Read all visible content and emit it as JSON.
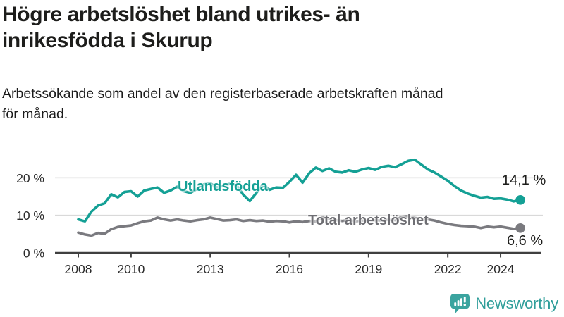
{
  "header": {
    "title_lines": [
      "Högre arbetslöshet bland utrikes- än",
      "inrikesfödda i Skurup"
    ],
    "subtitle_lines": [
      "Arbetssökande som andel av den registerbaserade arbetskraften månad",
      "för månad."
    ]
  },
  "footer": {
    "brand": "Newsworthy"
  },
  "colors": {
    "accent": "#14a095",
    "gray_line": "#7a7a7f",
    "gray_label": "#6e6e73",
    "grid": "#d9d9d9",
    "axis": "#3f3f3f",
    "tick_text": "#2b2b2b",
    "logo_icon": "#3ba49f",
    "logo_text": "#2f9e9a"
  },
  "chart_data": {
    "type": "line",
    "title": "Högre arbetslöshet bland utrikes- än inrikesfödda i Skurup",
    "subtitle": "Arbetssökande som andel av den registerbaserade arbetskraften månad för månad.",
    "xlabel": "",
    "ylabel": "",
    "grid": "horizontal",
    "legend_position": "inline-labels",
    "xlim": [
      2008,
      2025
    ],
    "ylim": [
      0,
      26
    ],
    "x_start": 2008,
    "x_step": 0.25,
    "x_ticks": [
      2008,
      2010,
      2013,
      2016,
      2019,
      2022,
      2024
    ],
    "y_ticks": [
      0,
      10,
      20
    ],
    "y_tick_labels": [
      "0 %",
      "10 %",
      "20 %"
    ],
    "series": [
      {
        "name": "Utlandsfödda",
        "color": "#14a095",
        "end_label": "14,1 %",
        "end_value": 14.1,
        "values": [
          8.9,
          8.4,
          11.0,
          12.6,
          13.2,
          15.6,
          14.8,
          16.2,
          16.4,
          15.0,
          16.6,
          17.0,
          17.4,
          16.0,
          16.6,
          17.6,
          16.4,
          16.0,
          17.0,
          18.2,
          18.5,
          17.4,
          17.9,
          18.4,
          18.0,
          15.5,
          13.8,
          16.0,
          18.2,
          16.8,
          17.4,
          17.3,
          18.9,
          20.8,
          18.7,
          21.2,
          22.7,
          21.8,
          22.5,
          21.6,
          21.4,
          22.0,
          21.6,
          22.2,
          22.6,
          22.1,
          22.9,
          23.2,
          22.8,
          23.6,
          24.5,
          24.8,
          23.5,
          22.2,
          21.4,
          20.3,
          19.2,
          17.8,
          16.6,
          15.8,
          15.2,
          14.7,
          14.9,
          14.4,
          14.5,
          14.2,
          13.7,
          14.1
        ]
      },
      {
        "name": "Total arbetslöshet",
        "color": "#7a7a7f",
        "end_label": "6,6 %",
        "end_value": 6.6,
        "values": [
          5.4,
          4.9,
          4.6,
          5.3,
          5.1,
          6.3,
          6.9,
          7.1,
          7.3,
          7.9,
          8.4,
          8.6,
          9.4,
          8.9,
          8.6,
          8.9,
          8.6,
          8.4,
          8.7,
          8.9,
          9.4,
          9.0,
          8.6,
          8.7,
          8.9,
          8.5,
          8.7,
          8.5,
          8.6,
          8.3,
          8.5,
          8.4,
          8.1,
          8.4,
          8.2,
          8.5,
          8.4,
          9.5,
          9.0,
          8.7,
          8.5,
          8.7,
          8.4,
          8.6,
          8.5,
          8.7,
          8.6,
          8.8,
          8.7,
          9.6,
          9.8,
          9.3,
          9.1,
          8.9,
          8.6,
          8.1,
          7.7,
          7.4,
          7.2,
          7.1,
          7.0,
          6.6,
          7.0,
          6.8,
          7.0,
          6.7,
          6.4,
          6.6
        ]
      }
    ]
  }
}
